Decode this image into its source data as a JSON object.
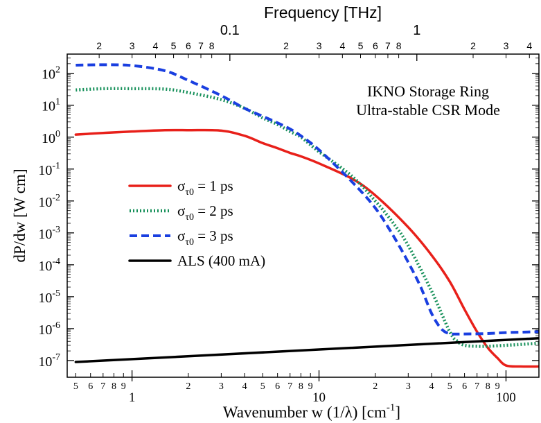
{
  "chart_data": {
    "type": "line",
    "title": "",
    "top_axis_label": "Frequency [THz]",
    "top_ticks": [
      {
        "value": 0.1,
        "label": "0.1"
      },
      {
        "value": 1,
        "label": "1"
      }
    ],
    "top_minor_ticks": [
      {
        "value": 0.02,
        "label": "2"
      },
      {
        "value": 0.03,
        "label": "3"
      },
      {
        "value": 0.04,
        "label": "4"
      },
      {
        "value": 0.05,
        "label": "5"
      },
      {
        "value": 0.06,
        "label": "6"
      },
      {
        "value": 0.07,
        "label": "7"
      },
      {
        "value": 0.08,
        "label": "8"
      },
      {
        "value": 0.2,
        "label": "2"
      },
      {
        "value": 0.3,
        "label": "3"
      },
      {
        "value": 0.4,
        "label": "4"
      },
      {
        "value": 0.5,
        "label": "5"
      },
      {
        "value": 0.6,
        "label": "6"
      },
      {
        "value": 0.7,
        "label": "7"
      },
      {
        "value": 0.8,
        "label": "8"
      },
      {
        "value": 2,
        "label": "2"
      },
      {
        "value": 3,
        "label": "3"
      },
      {
        "value": 4,
        "label": "4"
      }
    ],
    "xlabel_main": "Wavenumber  w  (1/λ) [cm",
    "xlabel_sup": "-1",
    "xlabel_end": "]",
    "ylabel": "dP/dw [W cm]",
    "xscale": "log",
    "yscale": "log",
    "xlim": [
      0.45,
      150
    ],
    "ylim": [
      3e-08,
      400
    ],
    "x_ticks": [
      {
        "value": 1,
        "label": "1"
      },
      {
        "value": 10,
        "label": "10"
      },
      {
        "value": 100,
        "label": "100"
      }
    ],
    "x_minor_ticks": [
      {
        "value": 0.5,
        "label": "5"
      },
      {
        "value": 0.6,
        "label": "6"
      },
      {
        "value": 0.7,
        "label": "7"
      },
      {
        "value": 0.8,
        "label": "8"
      },
      {
        "value": 0.9,
        "label": "9"
      },
      {
        "value": 2,
        "label": "2"
      },
      {
        "value": 3,
        "label": "3"
      },
      {
        "value": 4,
        "label": "4"
      },
      {
        "value": 5,
        "label": "5"
      },
      {
        "value": 6,
        "label": "6"
      },
      {
        "value": 7,
        "label": "7"
      },
      {
        "value": 8,
        "label": "8"
      },
      {
        "value": 9,
        "label": "9"
      },
      {
        "value": 20,
        "label": "2"
      },
      {
        "value": 30,
        "label": "3"
      },
      {
        "value": 40,
        "label": "4"
      },
      {
        "value": 50,
        "label": "5"
      },
      {
        "value": 60,
        "label": "6"
      },
      {
        "value": 70,
        "label": "7"
      },
      {
        "value": 80,
        "label": "8"
      },
      {
        "value": 90,
        "label": "9"
      }
    ],
    "y_ticks": [
      {
        "value": 1e-07,
        "base": "10",
        "exp": "-7"
      },
      {
        "value": 1e-06,
        "base": "10",
        "exp": "-6"
      },
      {
        "value": 1e-05,
        "base": "10",
        "exp": "-5"
      },
      {
        "value": 0.0001,
        "base": "10",
        "exp": "-4"
      },
      {
        "value": 0.001,
        "base": "10",
        "exp": "-3"
      },
      {
        "value": 0.01,
        "base": "10",
        "exp": "-2"
      },
      {
        "value": 0.1,
        "base": "10",
        "exp": "-1"
      },
      {
        "value": 1,
        "base": "10",
        "exp": "0"
      },
      {
        "value": 10,
        "base": "10",
        "exp": "1"
      },
      {
        "value": 100,
        "base": "10",
        "exp": "2"
      }
    ],
    "annotation_lines": [
      "IKNO Storage Ring",
      "Ultra-stable CSR Mode"
    ],
    "legend_placement": "middle-left",
    "series": [
      {
        "name": "σ_τ0 = 1 ps",
        "legend_main": "σ",
        "legend_sub": "τ0",
        "legend_tail": " = 1 ps",
        "color": "#e8201a",
        "style": "solid",
        "x": [
          0.5,
          0.7,
          1,
          1.5,
          2,
          3,
          4,
          5,
          6,
          7,
          8,
          10,
          15,
          20,
          30,
          40,
          50,
          60,
          70,
          80,
          90,
          100,
          120,
          150
        ],
        "y": [
          1.2,
          1.35,
          1.5,
          1.65,
          1.65,
          1.6,
          1.1,
          0.65,
          0.45,
          0.32,
          0.25,
          0.15,
          0.05,
          0.015,
          0.0015,
          0.0002,
          3e-05,
          4e-06,
          8e-07,
          2.5e-07,
          1.2e-07,
          7e-08,
          6.5e-08,
          6.5e-08
        ]
      },
      {
        "name": "σ_τ0 = 2 ps",
        "legend_main": "σ",
        "legend_sub": "τ0",
        "legend_tail": " = 2 ps",
        "color": "#16905a",
        "style": "dotted",
        "x": [
          0.5,
          0.7,
          1,
          1.5,
          2,
          3,
          4,
          5,
          6,
          7,
          8,
          10,
          15,
          20,
          25,
          30,
          40,
          50,
          55,
          60,
          70,
          80,
          100,
          120,
          150
        ],
        "y": [
          30,
          33,
          33,
          32,
          25,
          15,
          8,
          4,
          2.5,
          1.5,
          1,
          0.35,
          0.06,
          0.01,
          0.002,
          0.0004,
          1.5e-05,
          8e-07,
          4e-07,
          3e-07,
          2.8e-07,
          2.8e-07,
          3e-07,
          3.2e-07,
          3.5e-07
        ]
      },
      {
        "name": "σ_τ0 = 3 ps",
        "legend_main": "σ",
        "legend_sub": "τ0",
        "legend_tail": " = 3 ps",
        "color": "#1a3fe0",
        "style": "dashed",
        "x": [
          0.5,
          0.7,
          1,
          1.5,
          2,
          3,
          4,
          5,
          6,
          7,
          8,
          10,
          15,
          20,
          25,
          30,
          35,
          40,
          45,
          50,
          60,
          80,
          100,
          150
        ],
        "y": [
          180,
          185,
          175,
          120,
          60,
          20,
          8,
          4.5,
          2.8,
          1.8,
          1.1,
          0.4,
          0.04,
          0.006,
          0.0008,
          0.00012,
          2e-05,
          3e-06,
          1e-06,
          7e-07,
          6.8e-07,
          7e-07,
          7.5e-07,
          8e-07
        ]
      },
      {
        "name": "ALS (400 mA)",
        "legend_main": "ALS (400 mA)",
        "legend_sub": "",
        "legend_tail": "",
        "color": "#000000",
        "style": "solid",
        "x": [
          0.5,
          150
        ],
        "y": [
          9e-08,
          5e-07
        ]
      }
    ]
  }
}
